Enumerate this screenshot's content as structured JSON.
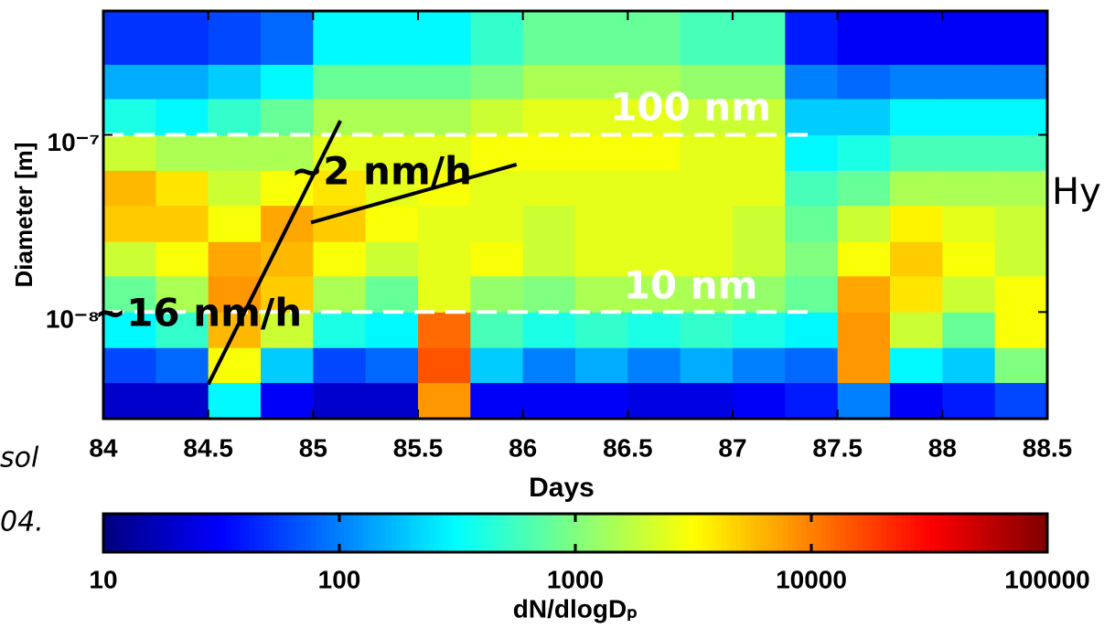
{
  "chart_data": {
    "type": "heatmap",
    "x_label": "Days",
    "y_label": "Diameter [m]",
    "xlim": [
      84,
      88.5
    ],
    "xticks": [
      84,
      84.5,
      85,
      85.5,
      86,
      86.5,
      87,
      87.5,
      88,
      88.5
    ],
    "ylim": [
      2.5e-09,
      5e-07
    ],
    "y_log": true,
    "yticks": [
      {
        "value": 1e-08,
        "label": "10⁻⁸"
      },
      {
        "value": 1e-07,
        "label": "10⁻⁷"
      }
    ],
    "x_edges": [
      84,
      84.25,
      84.5,
      84.75,
      85,
      85.25,
      85.5,
      85.75,
      86,
      86.25,
      86.5,
      86.75,
      87,
      87.25,
      87.5,
      87.75,
      88,
      88.25,
      88.5
    ],
    "y_edges": [
      2.5e-09,
      4e-09,
      6.3e-09,
      1e-08,
      1.6e-08,
      2.5e-08,
      4e-08,
      6.3e-08,
      1e-07,
      1.6e-07,
      2.5e-07,
      5e-07
    ],
    "z": [
      [
        20,
        20,
        300,
        30,
        20,
        20,
        8000,
        30,
        30,
        30,
        25,
        25,
        30,
        40,
        100,
        30,
        40,
        60
      ],
      [
        60,
        80,
        3000,
        200,
        60,
        80,
        15000,
        200,
        100,
        150,
        100,
        150,
        100,
        80,
        8000,
        300,
        200,
        1000
      ],
      [
        300,
        500,
        6000,
        2000,
        400,
        300,
        12000,
        600,
        400,
        500,
        400,
        500,
        400,
        300,
        8000,
        2000,
        800,
        3000
      ],
      [
        800,
        1500,
        8000,
        5000,
        1500,
        800,
        2500,
        1200,
        1000,
        1500,
        1500,
        1500,
        1200,
        800,
        7000,
        4000,
        2000,
        3000
      ],
      [
        2000,
        3000,
        7000,
        6000,
        3000,
        2000,
        2500,
        3000,
        2000,
        2500,
        2500,
        2500,
        2000,
        1000,
        3000,
        5000,
        3000,
        2000
      ],
      [
        5000,
        5000,
        3000,
        7000,
        5000,
        3000,
        2500,
        2500,
        2000,
        2500,
        2500,
        2500,
        2000,
        800,
        2000,
        3500,
        2500,
        2000
      ],
      [
        6000,
        4000,
        2000,
        3000,
        4000,
        2500,
        3000,
        2500,
        2500,
        2500,
        2500,
        2500,
        2500,
        600,
        800,
        1500,
        1500,
        1500
      ],
      [
        2000,
        1500,
        1500,
        1500,
        2500,
        2500,
        2500,
        3000,
        3000,
        3000,
        3000,
        2500,
        2500,
        300,
        400,
        600,
        600,
        600
      ],
      [
        400,
        300,
        500,
        800,
        1500,
        1500,
        1500,
        2000,
        2500,
        2500,
        2500,
        2000,
        2000,
        200,
        200,
        300,
        300,
        300
      ],
      [
        150,
        150,
        200,
        300,
        800,
        800,
        800,
        1000,
        1500,
        1500,
        1500,
        1200,
        1200,
        100,
        80,
        100,
        100,
        100
      ],
      [
        50,
        50,
        60,
        80,
        300,
        300,
        300,
        500,
        800,
        800,
        800,
        600,
        600,
        40,
        30,
        30,
        30,
        30
      ]
    ],
    "colormap": "jet",
    "clim": [
      10,
      100000
    ],
    "c_log": true,
    "cticks": [
      10,
      100,
      1000,
      10000,
      100000
    ],
    "colorbar_label": "dN/dlogDₚ",
    "reference_lines": [
      {
        "x": [
          84,
          87.37
        ],
        "y": [
          1e-07,
          1e-07
        ],
        "color": "#ffffff",
        "dashed": true
      },
      {
        "x": [
          84,
          87.37
        ],
        "y": [
          1e-08,
          1e-08
        ],
        "color": "#ffffff",
        "dashed": true
      },
      {
        "x": [
          84.5,
          85.13
        ],
        "y": [
          3.9e-09,
          1.2e-07
        ],
        "color": "#000000",
        "dashed": false
      },
      {
        "x": [
          84.99,
          85.97
        ],
        "y": [
          3.2e-08,
          6.8e-08
        ],
        "color": "#000000",
        "dashed": false
      }
    ],
    "annotations": [
      {
        "text": "100 nm",
        "color": "#ffffff"
      },
      {
        "text": "10 nm",
        "color": "#ffffff"
      },
      {
        "text": "~2 nm/h",
        "color": "#000000"
      },
      {
        "text": "~16 nm/h",
        "color": "#000000"
      }
    ]
  },
  "fragments": [
    "sol",
    "04.",
    "Hy"
  ]
}
